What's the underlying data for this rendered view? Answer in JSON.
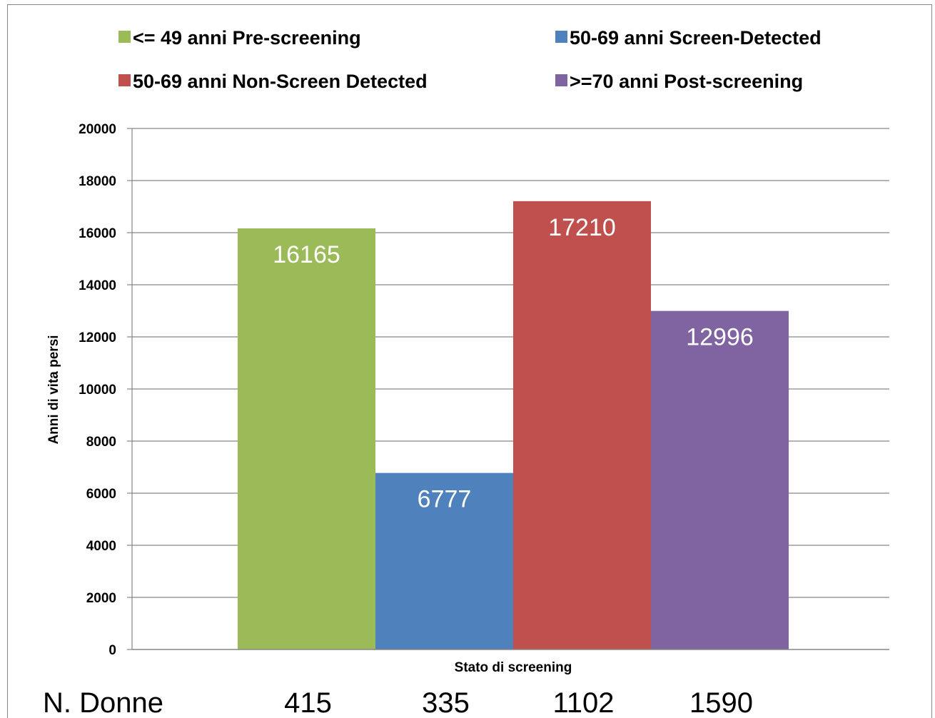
{
  "chart_data": {
    "type": "bar",
    "categories": [
      ""
    ],
    "series": [
      {
        "name": "<= 49 anni Pre-screening",
        "values": [
          16165
        ],
        "color": "#9BBB59"
      },
      {
        "name": "50-69 anni Screen-Detected",
        "values": [
          6777
        ],
        "color": "#4F81BD"
      },
      {
        "name": "50-69 anni Non-Screen Detected",
        "values": [
          17210
        ],
        "color": "#C0504D"
      },
      {
        "name": ">=70 anni Post-screening",
        "values": [
          12996
        ],
        "color": "#8064A2"
      }
    ],
    "data_labels": [
      "16165",
      "6777",
      "17210",
      "12996"
    ],
    "xlabel": "Stato di screening",
    "ylabel": "Anni di vita persi",
    "ylim": [
      0,
      20000
    ],
    "yticks": [
      0,
      2000,
      4000,
      6000,
      8000,
      10000,
      12000,
      14000,
      16000,
      18000,
      20000
    ],
    "grid": true,
    "legend_position": "top"
  },
  "footer": {
    "label": "N. Donne",
    "counts": [
      "415",
      "335",
      "1102",
      "1590"
    ]
  }
}
